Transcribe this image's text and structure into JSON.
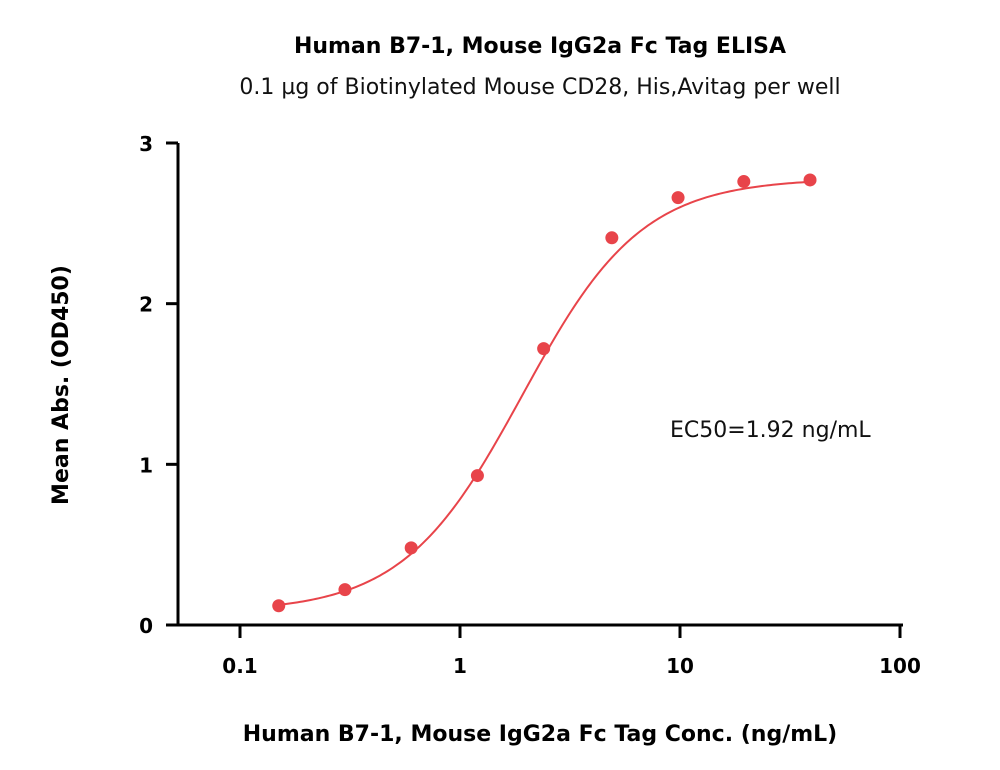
{
  "chart_data": {
    "type": "scatter",
    "title": "Human B7-1, Mouse IgG2a Fc Tag ELISA",
    "subtitle": "0.1 µg of Biotinylated Mouse CD28, His,Avitag per well",
    "xlabel": "Human B7-1, Mouse IgG2a Fc Tag Conc. (ng/mL)",
    "ylabel": "Mean Abs. (OD450)",
    "x_scale": "log",
    "xlim": [
      0.05,
      100
    ],
    "ylim": [
      0,
      3
    ],
    "x_ticks": [
      0.1,
      1,
      10,
      100
    ],
    "x_tick_labels": [
      "0.1",
      "1",
      "10",
      "100"
    ],
    "y_ticks": [
      0,
      1,
      2,
      3
    ],
    "y_tick_labels": [
      "0",
      "1",
      "2",
      "3"
    ],
    "grid": false,
    "annotation": "EC50=1.92 ng/mL",
    "color": "#e8444a",
    "series": [
      {
        "x": [
          0.15,
          0.3,
          0.6,
          1.2,
          2.4,
          4.9,
          9.8,
          19.5,
          39
        ],
        "y": [
          0.12,
          0.22,
          0.48,
          0.93,
          1.72,
          2.41,
          2.66,
          2.76,
          2.77
        ]
      }
    ],
    "fit": {
      "bottom": 0.08,
      "top": 2.78,
      "ec50": 1.92,
      "hill": 1.6
    }
  }
}
